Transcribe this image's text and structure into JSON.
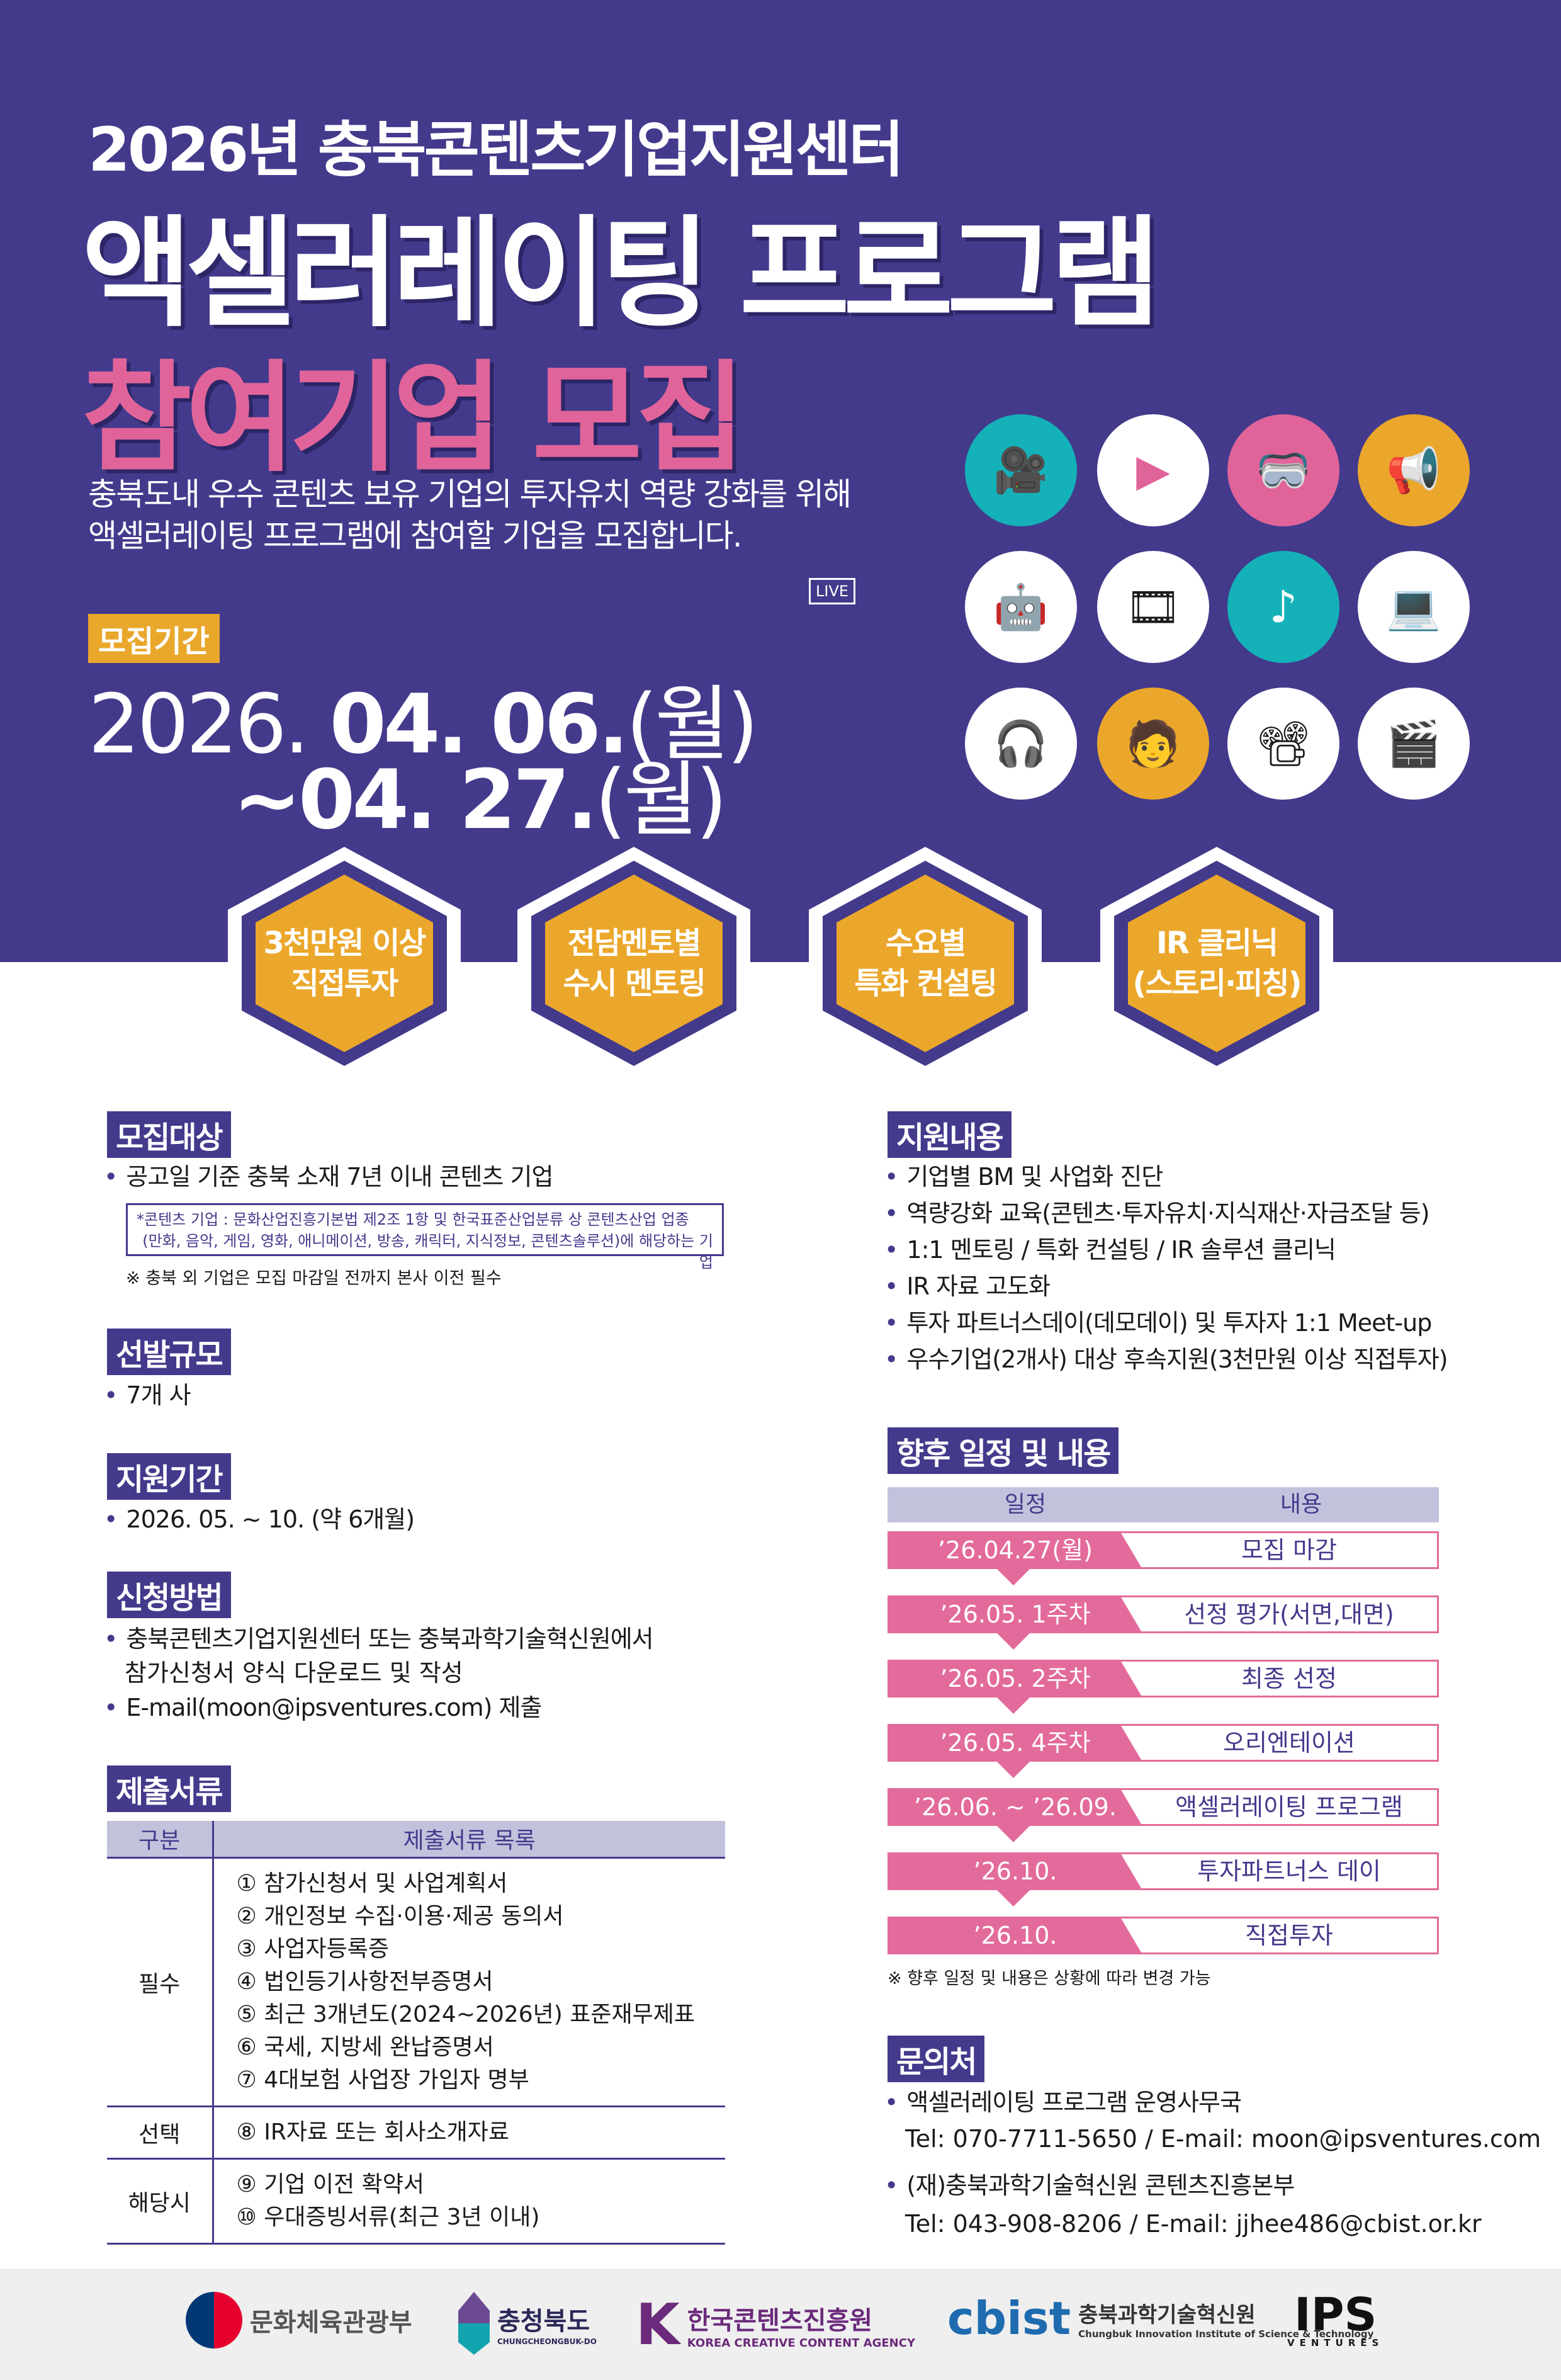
{
  "header": {
    "subtitle": "2026년 충북콘텐츠기업지원센터",
    "title": "액셀러레이팅 프로그램",
    "title2": "참여기업 모집",
    "desc1": "충북도내 우수 콘텐츠 보유 기업의 투자유치 역량 강화를 위해",
    "desc2": "액셀러레이팅 프로그램에 참여할 기업을 모집합니다.",
    "period_label": "모집기간",
    "date1_year": "2026.",
    "date1_md": "04. 06.",
    "date1_day": "(월)",
    "date2_md": "~04. 27.",
    "date2_day": "(월)",
    "live_label": "LIVE"
  },
  "colors": {
    "purple": "#433a8c",
    "pink": "#e0649a",
    "orange": "#eba72b",
    "teal": "#14b1b9"
  },
  "highlights": [
    {
      "l1": "3천만원 이상",
      "l2": "직접투자"
    },
    {
      "l1": "전담멘토별",
      "l2": "수시 멘토링"
    },
    {
      "l1": "수요별",
      "l2": "특화 컨설팅"
    },
    {
      "l1": "IR 클리닉",
      "l2": "(스토리·피칭)"
    }
  ],
  "target": {
    "title": "모집대상",
    "bullet": "공고일 기준 충북 소재 7년 이내 콘텐츠 기업",
    "note1": "*콘텐츠 기업 : 문화산업진흥기본법 제2조 1항 및 한국표준산업분류 상 콘텐츠산업 업종",
    "note2": "(만화, 음악, 게임, 영화, 애니메이션, 방송, 캐릭터, 지식정보, 콘텐츠솔루션)에 해당하는 기업",
    "remark": "※ 충북 외 기업은 모집 마감일 전까지 본사 이전 필수"
  },
  "scale": {
    "title": "선발규모",
    "bullet": "7개 사"
  },
  "support_period": {
    "title": "지원기간",
    "bullet": "2026. 05. ~ 10. (약 6개월)"
  },
  "apply": {
    "title": "신청방법",
    "b1": "충북콘텐츠기업지원센터 또는 충북과학기술혁신원에서",
    "b1b": "참가신청서 양식 다운로드 및 작성",
    "b2": "E-mail(moon@ipsventures.com) 제출"
  },
  "docs": {
    "title": "제출서류",
    "col1": "구분",
    "col2": "제출서류 목록",
    "rows": [
      {
        "cat": "필수",
        "items": [
          "① 참가신청서 및 사업계획서",
          "② 개인정보 수집·이용·제공 동의서",
          "③ 사업자등록증",
          "④ 법인등기사항전부증명서",
          "⑤ 최근 3개년도(2024~2026년) 표준재무제표",
          "⑥ 국세, 지방세 완납증명서",
          "⑦ 4대보험 사업장 가입자 명부"
        ]
      },
      {
        "cat": "선택",
        "items": [
          "⑧ IR자료 또는 회사소개자료"
        ]
      },
      {
        "cat": "해당시",
        "items": [
          "⑨ 기업 이전 확약서",
          "⑩ 우대증빙서류(최근 3년 이내)"
        ]
      }
    ]
  },
  "support": {
    "title": "지원내용",
    "items": [
      "기업별 BM 및 사업화 진단",
      "역량강화 교육(콘텐츠·투자유치·지식재산·자금조달 등)",
      "1:1 멘토링 / 특화 컨설팅 / IR 솔루션 클리닉",
      "IR 자료 고도화",
      "투자 파트너스데이(데모데이) 및 투자자 1:1 Meet-up",
      "우수기업(2개사) 대상 후속지원(3천만원 이상 직접투자)"
    ]
  },
  "schedule": {
    "title": "향후 일정 및 내용",
    "col1": "일정",
    "col2": "내용",
    "rows": [
      {
        "date": "’26.04.27(월)",
        "content": "모집 마감"
      },
      {
        "date": "’26.05. 1주차",
        "content": "선정 평가(서면,대면)"
      },
      {
        "date": "’26.05. 2주차",
        "content": "최종 선정"
      },
      {
        "date": "’26.05. 4주차",
        "content": "오리엔테이션"
      },
      {
        "date": "’26.06. ~ ’26.09.",
        "content": "액셀러레이팅 프로그램"
      },
      {
        "date": "’26.10.",
        "content": "투자파트너스 데이"
      },
      {
        "date": "’26.10.",
        "content": "직접투자"
      }
    ],
    "note": "※ 향후 일정 및 내용은 상황에 따라 변경 가능"
  },
  "contact": {
    "title": "문의처",
    "org1": "액셀러레이팅 프로그램 운영사무국",
    "tel1": "Tel: 070-7711-5650 / E-mail: moon@ipsventures.com",
    "org2": "(재)충북과학기술혁신원 콘텐츠진흥본부",
    "tel2": "Tel: 043-908-8206 / E-mail: jjhee486@cbist.or.kr"
  },
  "footer": {
    "logos": [
      {
        "name": "문화체육관광부"
      },
      {
        "name": "충청북도",
        "sub": "CHUNGCHEONGBUK-DO"
      },
      {
        "name": "한국콘텐츠진흥원",
        "sub": "KOREA CREATIVE CONTENT AGENCY"
      },
      {
        "mark": "cbist",
        "name": "충북과학기술혁신원",
        "sub": "Chungbuk Innovation Institute of Science & Technology"
      },
      {
        "mark": "IPS",
        "sub": "VENTURES"
      }
    ]
  }
}
